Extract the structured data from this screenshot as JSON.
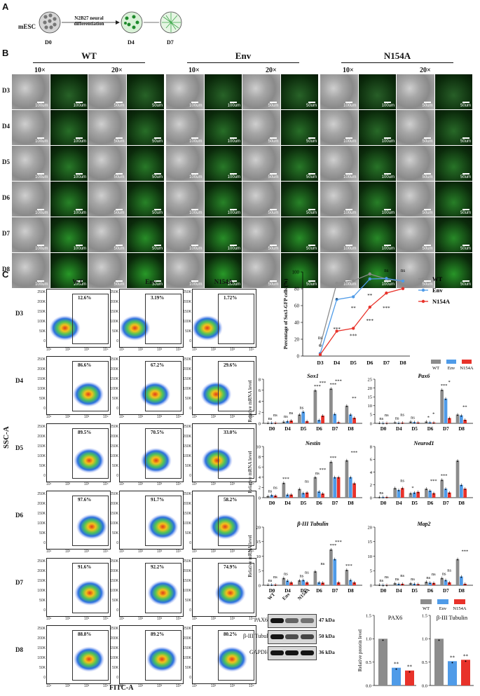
{
  "panels": {
    "A": "A",
    "B": "B",
    "C": "C",
    "D": "D",
    "E": "E"
  },
  "panelA": {
    "start": "mESC",
    "protocol_line1": "N2B27 neural",
    "protocol_line2": "differentiation",
    "days": [
      "D0",
      "D4",
      "D7"
    ]
  },
  "panelB": {
    "groups": [
      "WT",
      "Env",
      "N154A"
    ],
    "mags": [
      "10×",
      "20×"
    ],
    "days": [
      "D3",
      "D4",
      "D5",
      "D6",
      "D7",
      "D8"
    ],
    "scale_10x": "100um",
    "scale_20x": "50um"
  },
  "panelC": {
    "groups": [
      "WT",
      "Env",
      "N154A"
    ],
    "days": [
      "D3",
      "D4",
      "D5",
      "D6",
      "D7",
      "D8"
    ],
    "percentages": [
      [
        "12.6%",
        "3.19%",
        "1.72%"
      ],
      [
        "86.6%",
        "67.2%",
        "29.6%"
      ],
      [
        "89.5%",
        "70.5%",
        "33.0%"
      ],
      [
        "97.6%",
        "91.7%",
        "58.2%"
      ],
      [
        "91.6%",
        "92.2%",
        "74.9%"
      ],
      [
        "88.8%",
        "89.2%",
        "80.2%"
      ]
    ],
    "y_ticks": [
      "250K",
      "200K",
      "150K",
      "100K",
      "50K",
      "0"
    ],
    "x_ticks": [
      "10¹",
      "10²",
      "10³",
      "10⁴"
    ],
    "xlabel": "FITC-A",
    "ylabel": "SSC-A"
  },
  "colors": {
    "WT": "#8c8c8c",
    "Env": "#4f9be8",
    "N154A": "#e8322a"
  },
  "chart_data": [
    {
      "type": "line",
      "ylabel": "Percentage of Sox1-GFP cells (%)",
      "categories": [
        "D3",
        "D4",
        "D5",
        "D6",
        "D7",
        "D8"
      ],
      "ylim": [
        0,
        100
      ],
      "yticks": [
        "0",
        "20",
        "40",
        "60",
        "80",
        "100"
      ],
      "series": [
        {
          "name": "WT",
          "values": [
            12.6,
            86.6,
            89.5,
            97.6,
            91.6,
            88.8
          ]
        },
        {
          "name": "Env",
          "values": [
            3.19,
            67.2,
            70.5,
            91.7,
            92.2,
            89.2
          ]
        },
        {
          "name": "N154A",
          "values": [
            1.72,
            29.6,
            33.0,
            58.2,
            74.9,
            80.2
          ]
        }
      ],
      "significance": [
        {
          "x": "D3",
          "label": "ns"
        },
        {
          "x": "D4",
          "label": "*"
        },
        {
          "x": "D4",
          "label": "***"
        },
        {
          "x": "D5",
          "label": "**"
        },
        {
          "x": "D5",
          "label": "***"
        },
        {
          "x": "D6",
          "label": "**"
        },
        {
          "x": "D6",
          "label": "***"
        },
        {
          "x": "D7",
          "label": "ns"
        },
        {
          "x": "D7",
          "label": "***"
        },
        {
          "x": "D8",
          "label": "ns"
        }
      ]
    },
    {
      "type": "bar",
      "title": "Sox1",
      "ylabel": "Relative mRNA level",
      "categories": [
        "D0",
        "D4",
        "D5",
        "D6",
        "D7",
        "D8"
      ],
      "ylim": [
        0,
        8
      ],
      "yticks": [
        "0",
        "2",
        "4",
        "6",
        "8"
      ],
      "series": [
        {
          "name": "WT",
          "values": [
            0.1,
            0.3,
            1.6,
            6.0,
            6.3,
            3.2
          ]
        },
        {
          "name": "Env",
          "values": [
            0.1,
            0.4,
            2.1,
            0.6,
            1.7,
            1.6
          ]
        },
        {
          "name": "N154A",
          "values": [
            0.1,
            0.5,
            0.4,
            1.4,
            0.2,
            1.0
          ]
        }
      ],
      "sig": [
        "ns",
        "ns",
        "ns",
        "ns",
        "ns",
        "***",
        "***",
        "***",
        "***",
        "**"
      ]
    },
    {
      "type": "bar",
      "title": "Pax6",
      "ylabel": "",
      "categories": [
        "D0",
        "D4",
        "D5",
        "D6",
        "D7",
        "D8"
      ],
      "ylim": [
        0,
        25
      ],
      "yticks": [
        "0",
        "5",
        "10",
        "15",
        "20",
        "25"
      ],
      "series": [
        {
          "name": "WT",
          "values": [
            0.3,
            0.6,
            1.0,
            1.0,
            19.0,
            5.0
          ]
        },
        {
          "name": "Env",
          "values": [
            0.2,
            0.3,
            0.7,
            0.6,
            14.0,
            4.5
          ]
        },
        {
          "name": "N154A",
          "values": [
            0.2,
            0.4,
            0.5,
            0.5,
            3.0,
            2.0
          ]
        }
      ],
      "sig": [
        "ns",
        "ns",
        "ns",
        "ns",
        "ns",
        "*",
        "*",
        "*",
        "***",
        "**"
      ]
    },
    {
      "type": "bar",
      "title": "Nestin",
      "ylabel": "Relative mRNA level",
      "categories": [
        "D0",
        "D4",
        "D5",
        "D6",
        "D7",
        "D8"
      ],
      "ylim": [
        0,
        10
      ],
      "yticks": [
        "0",
        "2",
        "4",
        "6",
        "8",
        "10"
      ],
      "series": [
        {
          "name": "WT",
          "values": [
            0.3,
            2.9,
            1.7,
            4.0,
            7.0,
            7.3
          ]
        },
        {
          "name": "Env",
          "values": [
            0.5,
            0.6,
            0.9,
            1.2,
            4.0,
            4.0
          ]
        },
        {
          "name": "N154A",
          "values": [
            0.4,
            0.6,
            1.0,
            0.8,
            4.0,
            2.8
          ]
        }
      ],
      "sig": [
        "ns",
        "ns",
        "***",
        "ns",
        "ns",
        "***",
        "***",
        "***"
      ]
    },
    {
      "type": "bar",
      "title": "Neurod1",
      "ylabel": "",
      "categories": [
        "D0",
        "D4",
        "D5",
        "D6",
        "D7",
        "D8"
      ],
      "ylim": [
        0,
        8
      ],
      "yticks": [
        "0",
        "2",
        "4",
        "6",
        "8"
      ],
      "series": [
        {
          "name": "WT",
          "values": [
            0.1,
            1.5,
            0.7,
            1.4,
            2.8,
            5.8
          ]
        },
        {
          "name": "Env",
          "values": [
            0.1,
            1.2,
            0.8,
            1.1,
            1.4,
            2.0
          ]
        },
        {
          "name": "N154A",
          "values": [
            0.1,
            1.5,
            0.9,
            0.7,
            0.8,
            1.4
          ]
        }
      ],
      "sig": [
        "ns",
        "ns",
        "*",
        "***",
        "***"
      ]
    },
    {
      "type": "bar",
      "title": "β-III Tubulin",
      "ylabel": "Relative mRNA level",
      "categories": [
        "D0",
        "D4",
        "D5",
        "D6",
        "D7",
        "D8"
      ],
      "ylim": [
        0,
        20
      ],
      "yticks": [
        "0",
        "5",
        "10",
        "15",
        "20"
      ],
      "series": [
        {
          "name": "WT",
          "values": [
            0.2,
            2.5,
            1.7,
            4.8,
            12.3,
            5.3
          ]
        },
        {
          "name": "Env",
          "values": [
            0.2,
            1.6,
            1.8,
            1.0,
            9.0,
            1.8
          ]
        },
        {
          "name": "N154A",
          "values": [
            0.2,
            1.0,
            1.0,
            0.9,
            1.0,
            1.0
          ]
        }
      ],
      "sig": [
        "ns",
        "ns",
        "ns",
        "ns",
        "ns",
        "ns",
        "***",
        "***",
        "***"
      ]
    },
    {
      "type": "bar",
      "title": "Map2",
      "ylabel": "",
      "categories": [
        "D0",
        "D4",
        "D5",
        "D6",
        "D7",
        "D8"
      ],
      "ylim": [
        0,
        20
      ],
      "yticks": [
        "0",
        "5",
        "10",
        "15",
        "20"
      ],
      "series": [
        {
          "name": "WT",
          "values": [
            0.2,
            0.7,
            0.7,
            1.2,
            2.5,
            9.0
          ]
        },
        {
          "name": "Env",
          "values": [
            0.1,
            0.5,
            0.5,
            0.9,
            1.8,
            3.0
          ]
        },
        {
          "name": "N154A",
          "values": [
            0.1,
            0.5,
            0.4,
            0.8,
            1.0,
            0.5
          ]
        }
      ],
      "sig": [
        "ns",
        "ns",
        "ns",
        "ns",
        "ns",
        "ns",
        "ns",
        "ns",
        "ns",
        "***"
      ]
    },
    {
      "type": "bar",
      "title": "PAX6",
      "ylabel": "Relative protein level",
      "categories": [
        "WT",
        "Env",
        "N154A"
      ],
      "ylim": [
        0,
        1.5
      ],
      "yticks": [
        "0.0",
        "0.5",
        "1.0",
        "1.5"
      ],
      "values": [
        1.0,
        0.38,
        0.32
      ],
      "sig": [
        "**",
        "**"
      ]
    },
    {
      "type": "bar",
      "title": "β-III Tubulin",
      "ylabel": "",
      "categories": [
        "WT",
        "Env",
        "N154A"
      ],
      "ylim": [
        0,
        1.5
      ],
      "yticks": [
        "0.0",
        "0.5",
        "1.0",
        "1.5"
      ],
      "values": [
        1.0,
        0.52,
        0.55
      ],
      "sig": [
        "**",
        "**"
      ]
    }
  ],
  "panelD_legend": [
    "WT",
    "Env",
    "N154A"
  ],
  "panelE": {
    "lanes": [
      "WT",
      "Env",
      "N154A"
    ],
    "blots": [
      {
        "name": "PAX6",
        "kda": "47 kDa"
      },
      {
        "name": "β-III Tubulin",
        "kda": "50 kDa"
      },
      {
        "name": "GAPDH",
        "kda": "36 kDa"
      }
    ],
    "legend": [
      "WT",
      "Env",
      "N154A"
    ]
  }
}
